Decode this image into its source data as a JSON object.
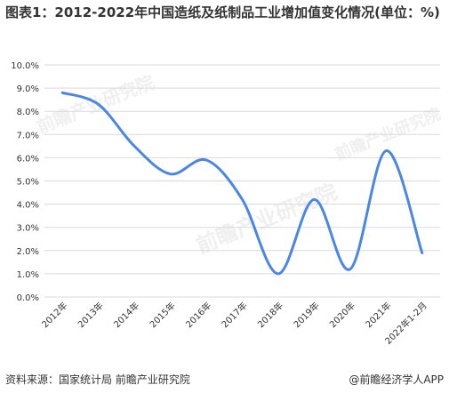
{
  "title": "图表1：2012-2022年中国造纸及纸制品工业增加值变化情况(单位：%)",
  "footer": {
    "source": "资料来源：国家统计局 前瞻产业研究院",
    "brand": "@前瞻经济学人APP"
  },
  "watermark": "前瞻产业研究院",
  "colors": {
    "line": "#4a86e8",
    "grid": "#d9d9d9",
    "text": "#333333"
  },
  "chart_data": {
    "type": "line",
    "smooth": true,
    "categories": [
      "2012年",
      "2013年",
      "2014年",
      "2015年",
      "2016年",
      "2017年",
      "2018年",
      "2019年",
      "2020年",
      "2021年",
      "2022年1-2月"
    ],
    "series": [
      {
        "values": [
          8.8,
          8.3,
          6.5,
          5.3,
          5.9,
          4.2,
          1.0,
          4.2,
          1.2,
          6.3,
          1.9
        ]
      }
    ],
    "y_ticks": [
      "0.0%",
      "1.0%",
      "2.0%",
      "3.0%",
      "4.0%",
      "5.0%",
      "6.0%",
      "7.0%",
      "8.0%",
      "9.0%",
      "10.0%"
    ],
    "ylim": [
      0,
      10
    ],
    "grid": true,
    "legend": "none"
  }
}
